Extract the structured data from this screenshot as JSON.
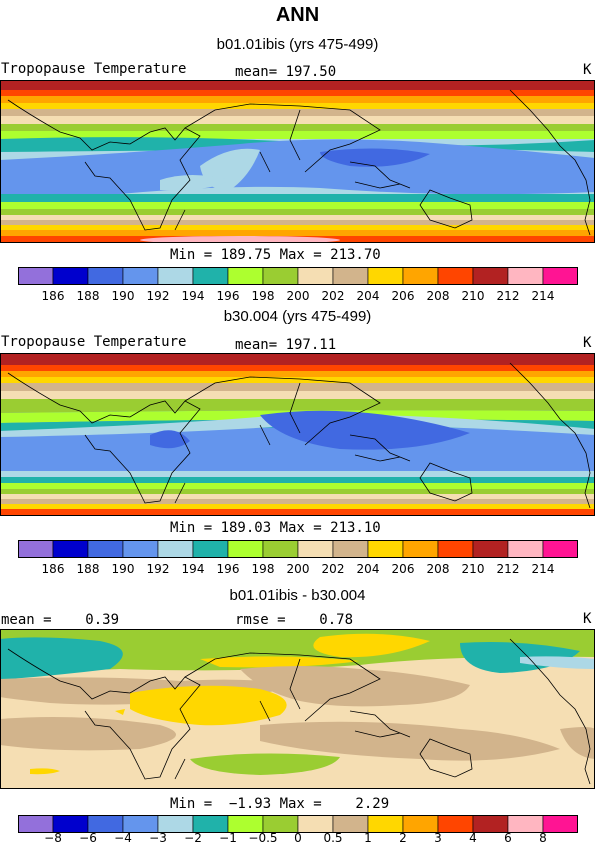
{
  "page": {
    "title": "ANN"
  },
  "panels": [
    {
      "subtitle": "b01.01ibis (yrs 475-499)",
      "left_label": "Tropopause Temperature",
      "center_label": "mean= 197.50",
      "units": "K",
      "stats": "Min = 189.75 Max = 213.70",
      "colorbar_labels": [
        "186",
        "188",
        "190",
        "192",
        "194",
        "196",
        "198",
        "200",
        "202",
        "204",
        "206",
        "208",
        "210",
        "212",
        "214"
      ]
    },
    {
      "subtitle": "b30.004 (yrs 475-499)",
      "left_label": "Tropopause Temperature",
      "center_label": "mean= 197.11",
      "units": "K",
      "stats": "Min = 189.03 Max = 213.10",
      "colorbar_labels": [
        "186",
        "188",
        "190",
        "192",
        "194",
        "196",
        "198",
        "200",
        "202",
        "204",
        "206",
        "208",
        "210",
        "212",
        "214"
      ]
    },
    {
      "subtitle": "b01.01ibis - b30.004",
      "left_label": "mean =    0.39",
      "center_label": "rmse =    0.78",
      "units": "K",
      "stats": "Min =  −1.93 Max =    2.29",
      "colorbar_labels": [
        "−8",
        "−6",
        "−4",
        "−3",
        "−2",
        "−1",
        "−0.5",
        "0",
        "0.5",
        "1",
        "2",
        "3",
        "4",
        "6",
        "8"
      ]
    }
  ],
  "colors": {
    "abs_scale": [
      "#9370DB",
      "#0000CD",
      "#4169E1",
      "#6495ED",
      "#ADD8E6",
      "#20B2AA",
      "#ADFF2F",
      "#9ACD32",
      "#F5DEB3",
      "#D2B48C",
      "#FFD700",
      "#FFA500",
      "#FF4500",
      "#B22222",
      "#FFB6C1",
      "#FF1493"
    ],
    "diff_scale": [
      "#9370DB",
      "#0000CD",
      "#4169E1",
      "#6495ED",
      "#ADD8E6",
      "#20B2AA",
      "#ADFF2F",
      "#9ACD32",
      "#F5DEB3",
      "#D2B48C",
      "#FFD700",
      "#FFA500",
      "#FF4500",
      "#B22222",
      "#FFB6C1",
      "#FF1493"
    ]
  }
}
